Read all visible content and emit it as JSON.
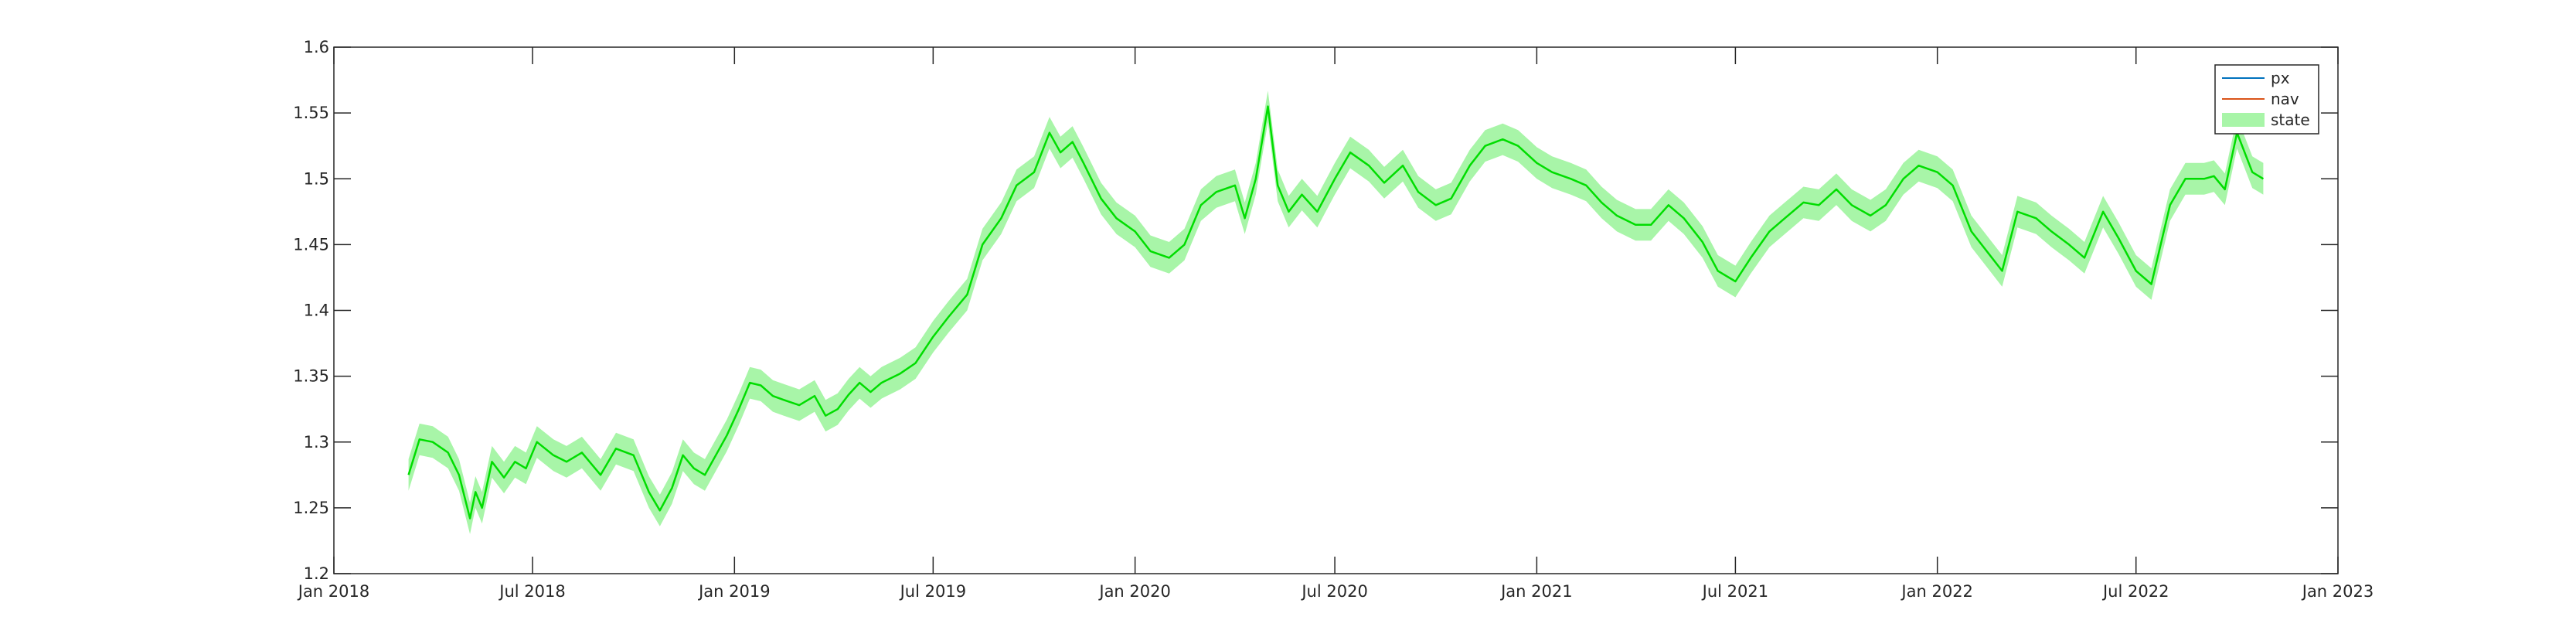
{
  "chart_data": {
    "type": "line",
    "title": "",
    "xlabel": "",
    "ylabel": "",
    "xlim": [
      "2018-01-01",
      "2023-01-01"
    ],
    "ylim": [
      1.2,
      1.6
    ],
    "grid": false,
    "legend_position": "top-right",
    "x_ticks": [
      "2018-01-01",
      "2018-07-01",
      "2019-01-01",
      "2019-07-01",
      "2020-01-01",
      "2020-07-01",
      "2021-01-01",
      "2021-07-01",
      "2022-01-01",
      "2022-07-01",
      "2023-01-01"
    ],
    "x_tick_labels": [
      "Jan 2018",
      "Jul 2018",
      "Jan 2019",
      "Jul 2019",
      "Jan 2020",
      "Jul 2020",
      "Jan 2021",
      "Jul 2021",
      "Jan 2022",
      "Jul 2022",
      "Jan 2023"
    ],
    "y_ticks": [
      1.2,
      1.25,
      1.3,
      1.35,
      1.4,
      1.45,
      1.5,
      1.55,
      1.6
    ],
    "y_tick_labels": [
      "1.2",
      "1.25",
      "1.3",
      "1.35",
      "1.4",
      "1.45",
      "1.5",
      "1.55",
      "1.6"
    ],
    "legend": [
      {
        "label": "px",
        "color": "#0072BD",
        "kind": "line"
      },
      {
        "label": "nav",
        "color": "#D95319",
        "kind": "line"
      },
      {
        "label": "state",
        "color": "#A8F5A8",
        "kind": "band"
      }
    ],
    "series": [
      {
        "name": "state",
        "color": "#00DD00",
        "band_color": "#A8F5A8",
        "band_halfwidth": 0.012,
        "x": [
          "2018-03-10",
          "2018-03-20",
          "2018-04-01",
          "2018-04-15",
          "2018-04-25",
          "2018-05-05",
          "2018-05-10",
          "2018-05-16",
          "2018-05-25",
          "2018-06-05",
          "2018-06-15",
          "2018-06-25",
          "2018-07-05",
          "2018-07-20",
          "2018-08-01",
          "2018-08-15",
          "2018-09-01",
          "2018-09-15",
          "2018-10-01",
          "2018-10-15",
          "2018-10-25",
          "2018-11-05",
          "2018-11-15",
          "2018-11-25",
          "2018-12-05",
          "2018-12-15",
          "2018-12-25",
          "2019-01-05",
          "2019-01-15",
          "2019-01-25",
          "2019-02-05",
          "2019-02-15",
          "2019-03-01",
          "2019-03-15",
          "2019-03-25",
          "2019-04-05",
          "2019-04-15",
          "2019-04-25",
          "2019-05-05",
          "2019-05-15",
          "2019-06-01",
          "2019-06-15",
          "2019-07-01",
          "2019-07-15",
          "2019-08-01",
          "2019-08-15",
          "2019-09-01",
          "2019-09-15",
          "2019-10-01",
          "2019-10-15",
          "2019-10-25",
          "2019-11-05",
          "2019-11-15",
          "2019-12-01",
          "2019-12-15",
          "2020-01-01",
          "2020-01-15",
          "2020-02-01",
          "2020-02-15",
          "2020-03-01",
          "2020-03-15",
          "2020-04-01",
          "2020-04-10",
          "2020-04-20",
          "2020-05-01",
          "2020-05-10",
          "2020-05-20",
          "2020-06-01",
          "2020-06-15",
          "2020-07-01",
          "2020-07-15",
          "2020-08-01",
          "2020-08-15",
          "2020-09-01",
          "2020-09-15",
          "2020-10-01",
          "2020-10-15",
          "2020-11-01",
          "2020-11-15",
          "2020-12-01",
          "2020-12-15",
          "2021-01-01",
          "2021-01-15",
          "2021-02-01",
          "2021-02-15",
          "2021-03-01",
          "2021-03-15",
          "2021-04-01",
          "2021-04-15",
          "2021-05-01",
          "2021-05-15",
          "2021-06-01",
          "2021-06-15",
          "2021-07-01",
          "2021-07-15",
          "2021-08-01",
          "2021-08-15",
          "2021-09-01",
          "2021-09-15",
          "2021-10-01",
          "2021-10-15",
          "2021-11-01",
          "2021-11-15",
          "2021-12-01",
          "2021-12-15",
          "2022-01-01",
          "2022-01-15",
          "2022-02-01",
          "2022-02-15",
          "2022-03-01",
          "2022-03-15",
          "2022-04-01",
          "2022-04-15",
          "2022-05-01",
          "2022-05-15",
          "2022-06-01",
          "2022-06-15",
          "2022-07-01",
          "2022-07-15",
          "2022-08-01",
          "2022-08-15",
          "2022-09-01",
          "2022-09-10",
          "2022-09-20",
          "2022-10-01",
          "2022-10-15",
          "2022-10-25"
        ],
        "y": [
          1.275,
          1.302,
          1.3,
          1.292,
          1.275,
          1.242,
          1.262,
          1.25,
          1.285,
          1.273,
          1.285,
          1.28,
          1.3,
          1.29,
          1.285,
          1.292,
          1.275,
          1.295,
          1.29,
          1.262,
          1.248,
          1.265,
          1.29,
          1.28,
          1.275,
          1.29,
          1.305,
          1.325,
          1.345,
          1.343,
          1.335,
          1.332,
          1.328,
          1.335,
          1.32,
          1.325,
          1.336,
          1.345,
          1.338,
          1.345,
          1.352,
          1.36,
          1.38,
          1.395,
          1.412,
          1.45,
          1.47,
          1.495,
          1.505,
          1.535,
          1.52,
          1.528,
          1.512,
          1.485,
          1.47,
          1.46,
          1.445,
          1.44,
          1.45,
          1.48,
          1.49,
          1.495,
          1.47,
          1.5,
          1.555,
          1.495,
          1.475,
          1.488,
          1.475,
          1.5,
          1.52,
          1.51,
          1.497,
          1.51,
          1.49,
          1.48,
          1.485,
          1.51,
          1.525,
          1.53,
          1.525,
          1.512,
          1.505,
          1.5,
          1.495,
          1.482,
          1.472,
          1.465,
          1.465,
          1.48,
          1.47,
          1.452,
          1.43,
          1.422,
          1.44,
          1.46,
          1.47,
          1.482,
          1.48,
          1.492,
          1.48,
          1.472,
          1.48,
          1.5,
          1.51,
          1.505,
          1.495,
          1.46,
          1.445,
          1.43,
          1.475,
          1.47,
          1.46,
          1.45,
          1.44,
          1.475,
          1.455,
          1.43,
          1.42,
          1.48,
          1.5,
          1.5,
          1.502,
          1.492,
          1.535,
          1.505,
          1.5
        ]
      }
    ]
  }
}
